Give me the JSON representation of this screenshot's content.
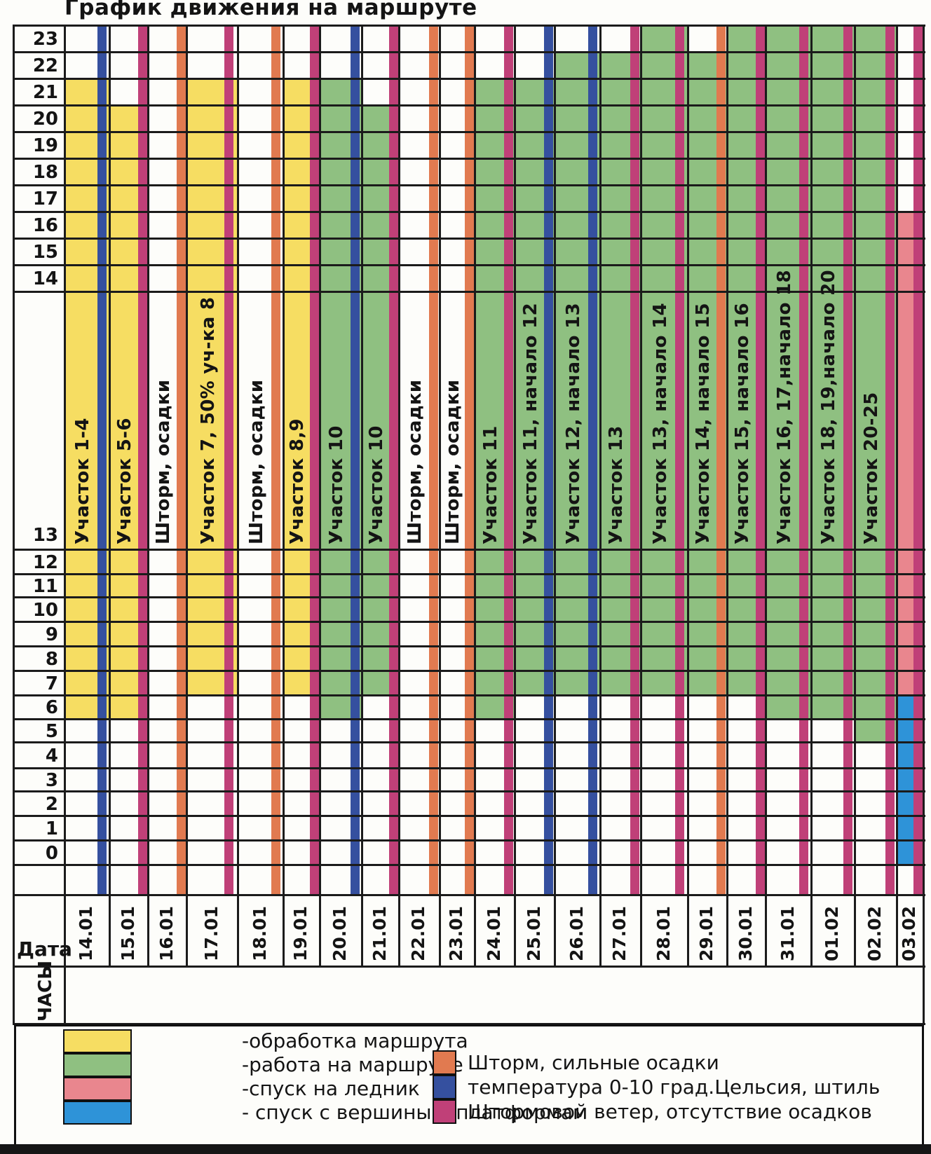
{
  "title": "График движения на маршруте",
  "axis": {
    "date_label": "Дата",
    "hours_label": "ЧАСЫ",
    "hours": [
      23,
      22,
      21,
      20,
      19,
      18,
      17,
      16,
      15,
      14,
      13,
      12,
      11,
      10,
      9,
      8,
      7,
      6,
      5,
      4,
      3,
      2,
      1,
      0
    ]
  },
  "colors": {
    "route_prep": "#F6DD62",
    "route_work": "#8FC081",
    "glacier_descent": "#E9868E",
    "summit_descent": "#2E93D8",
    "storm_precip": "#E17A50",
    "calm_temp": "#35509F",
    "storm_wind": "#C04078",
    "grid": "#1B1B1B"
  },
  "legend": {
    "activities": [
      {
        "color": "route_prep",
        "label": "-обработка маршрута"
      },
      {
        "color": "route_work",
        "label": "-работа на маршруте"
      },
      {
        "color": "glacier_descent",
        "label": "-спуск на ледник"
      },
      {
        "color": "summit_descent",
        "label": "- спуск с вершины к платформам"
      }
    ],
    "weather": [
      {
        "color": "storm_precip",
        "label": "Шторм, сильные осадки"
      },
      {
        "color": "calm_temp",
        "label": "температура 0-10 град.Цельсия, штиль"
      },
      {
        "color": "storm_wind",
        "label": "Штормовой ветер, отсутствие осадков"
      }
    ]
  },
  "chart_data": {
    "type": "table",
    "title": "График движения на маршруте",
    "x_axis": "Дата (dates 14.01 - 03.02)",
    "y_axis": "ЧАСЫ (hours, 23 at top to 0 at bottom)",
    "days": [
      {
        "date": "14.01",
        "label": "Участок 1-4",
        "weather": "calm_temp",
        "segments": [
          {
            "activity": "route_prep",
            "from_hour": 6,
            "to_hour": 21
          }
        ]
      },
      {
        "date": "15.01",
        "label": "Участок 5-6",
        "weather": "storm_wind",
        "segments": [
          {
            "activity": "route_prep",
            "from_hour": 6,
            "to_hour": 20
          }
        ]
      },
      {
        "date": "16.01",
        "label": "Шторм, осадки",
        "weather": "storm_precip",
        "segments": []
      },
      {
        "date": "17.01",
        "label": "Участок 7, 50% уч-ка 8",
        "weather": "storm_wind",
        "segments": [
          {
            "activity": "route_prep",
            "from_hour": 7,
            "to_hour": 21
          }
        ]
      },
      {
        "date": "18.01",
        "label": "Шторм, осадки",
        "weather": "storm_precip",
        "segments": []
      },
      {
        "date": "19.01",
        "label": "Участок 8,9",
        "weather": "storm_wind",
        "segments": [
          {
            "activity": "route_prep",
            "from_hour": 7,
            "to_hour": 21
          }
        ]
      },
      {
        "date": "20.01",
        "label": "Участок 10",
        "weather": "calm_temp",
        "segments": [
          {
            "activity": "route_work",
            "from_hour": 6,
            "to_hour": 21
          }
        ]
      },
      {
        "date": "21.01",
        "label": "Участок 10",
        "weather": "storm_wind",
        "segments": [
          {
            "activity": "route_work",
            "from_hour": 7,
            "to_hour": 20
          }
        ]
      },
      {
        "date": "22.01",
        "label": "Шторм, осадки",
        "weather": "storm_precip",
        "segments": []
      },
      {
        "date": "23.01",
        "label": "Шторм, осадки",
        "weather": "storm_precip",
        "segments": []
      },
      {
        "date": "24.01",
        "label": "Участок 11",
        "weather": "storm_wind",
        "segments": [
          {
            "activity": "route_work",
            "from_hour": 6,
            "to_hour": 21
          }
        ]
      },
      {
        "date": "25.01",
        "label": "Участок 11, начало 12",
        "weather": "calm_temp",
        "segments": [
          {
            "activity": "route_work",
            "from_hour": 7,
            "to_hour": 21
          }
        ]
      },
      {
        "date": "26.01",
        "label": "Участок 12, начало 13",
        "weather": "calm_temp",
        "segments": [
          {
            "activity": "route_work",
            "from_hour": 7,
            "to_hour": 22
          }
        ]
      },
      {
        "date": "27.01",
        "label": "Участок 13",
        "weather": "storm_wind",
        "segments": [
          {
            "activity": "route_work",
            "from_hour": 7,
            "to_hour": 22
          }
        ]
      },
      {
        "date": "28.01",
        "label": "Участок 13, начало 14",
        "weather": "storm_wind",
        "segments": [
          {
            "activity": "route_work",
            "from_hour": 7,
            "to_hour": 23
          }
        ]
      },
      {
        "date": "29.01",
        "label": "Участок 14, начало 15",
        "weather": "storm_precip",
        "segments": [
          {
            "activity": "route_work",
            "from_hour": 7,
            "to_hour": 22
          }
        ]
      },
      {
        "date": "30.01",
        "label": "Участок 15, начало 16",
        "weather": "storm_wind",
        "segments": [
          {
            "activity": "route_work",
            "from_hour": 7,
            "to_hour": 23
          }
        ]
      },
      {
        "date": "31.01",
        "label": "Участок 16, 17,начало 18",
        "weather": "storm_wind",
        "segments": [
          {
            "activity": "route_work",
            "from_hour": 6,
            "to_hour": 23
          }
        ]
      },
      {
        "date": "01.02",
        "label": "Участок 18, 19,начало 20",
        "weather": "storm_wind",
        "segments": [
          {
            "activity": "route_work",
            "from_hour": 6,
            "to_hour": 23
          }
        ]
      },
      {
        "date": "02.02",
        "label": "Участок 20-25",
        "weather": "storm_wind",
        "segments": [
          {
            "activity": "route_work",
            "from_hour": 5,
            "to_hour": 23
          }
        ]
      },
      {
        "date": "03.02",
        "label": "",
        "weather": "storm_wind",
        "segments": [
          {
            "activity": "glacier_descent",
            "from_hour": 7,
            "to_hour": 16
          },
          {
            "activity": "summit_descent",
            "from_hour": 0,
            "to_hour": 6
          }
        ]
      }
    ]
  }
}
